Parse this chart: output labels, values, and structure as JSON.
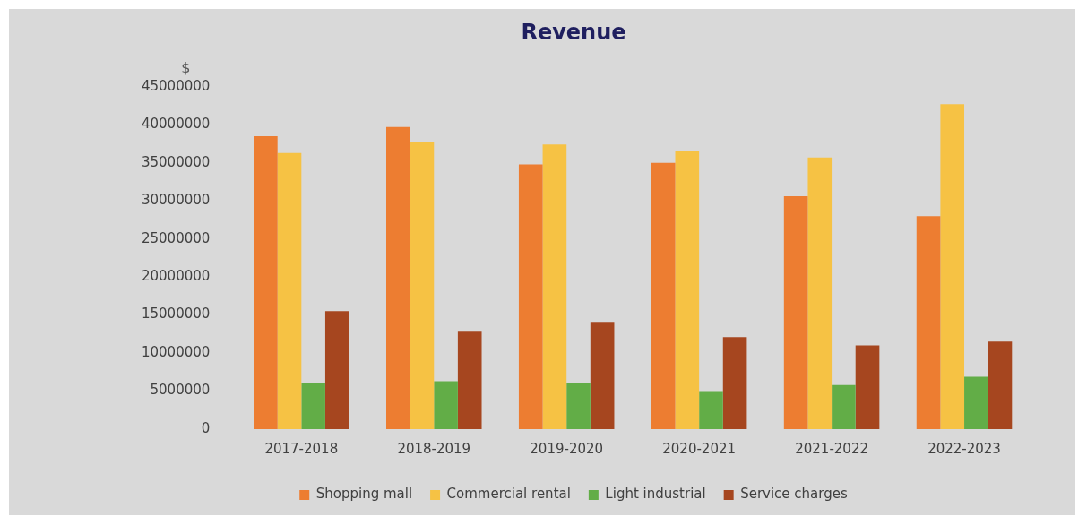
{
  "chart_data": {
    "type": "bar",
    "title": "Revenue",
    "ylabel": "$",
    "categories": [
      "2017-2018",
      "2018-2019",
      "2019-2020",
      "2020-2021",
      "2021-2022",
      "2022-2023"
    ],
    "series": [
      {
        "name": "Shopping mall",
        "color": "#ed7d31",
        "values": [
          38500000,
          39700000,
          34800000,
          35000000,
          30600000,
          28000000
        ]
      },
      {
        "name": "Commercial rental",
        "color": "#f6c244",
        "values": [
          36300000,
          37800000,
          37400000,
          36500000,
          35700000,
          42700000
        ]
      },
      {
        "name": "Light industrial",
        "color": "#62ad47",
        "values": [
          6000000,
          6300000,
          6000000,
          5000000,
          5800000,
          6900000
        ]
      },
      {
        "name": "Service charges",
        "color": "#a6461f",
        "values": [
          15500000,
          12800000,
          14100000,
          12100000,
          11000000,
          11500000
        ]
      }
    ],
    "ylim": [
      0,
      45000000
    ],
    "yticks": [
      0,
      5000000,
      10000000,
      15000000,
      20000000,
      25000000,
      30000000,
      35000000,
      40000000,
      45000000
    ],
    "legend": "bottom"
  }
}
